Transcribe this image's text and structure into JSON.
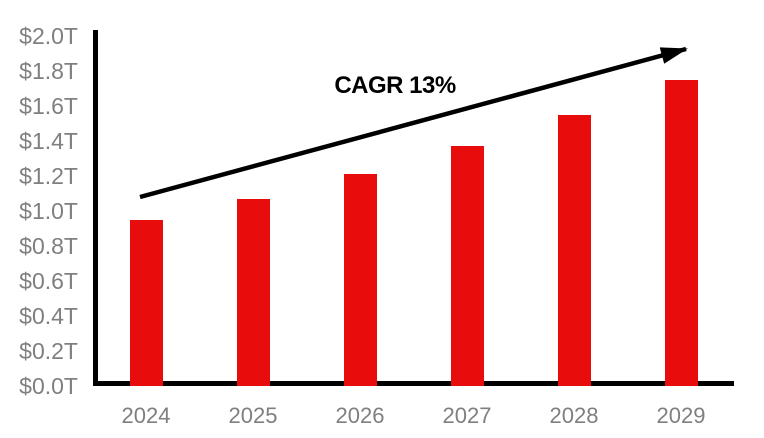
{
  "chart_data": {
    "type": "bar",
    "title": "",
    "categories": [
      "2024",
      "2025",
      "2026",
      "2027",
      "2028",
      "2029"
    ],
    "values": [
      0.95,
      1.07,
      1.21,
      1.37,
      1.55,
      1.75
    ],
    "value_unit": "trillion USD",
    "ylabel": "",
    "xlabel": "",
    "ylim": [
      0.0,
      2.0
    ],
    "ytick_step": 0.2,
    "ytick_labels": [
      "$0.0T",
      "$0.2T",
      "$0.4T",
      "$0.6T",
      "$0.8T",
      "$1.0T",
      "$1.2T",
      "$1.4T",
      "$1.6T",
      "$1.8T",
      "$2.0T"
    ],
    "annotation": "CAGR 13%",
    "grid": false,
    "legend": false,
    "colors": {
      "bar": "#e80c0c",
      "axis": "#000000",
      "tick_label": "#7f7f7f",
      "annotation_text": "#000000",
      "arrow": "#000000",
      "background": "#ffffff"
    }
  }
}
